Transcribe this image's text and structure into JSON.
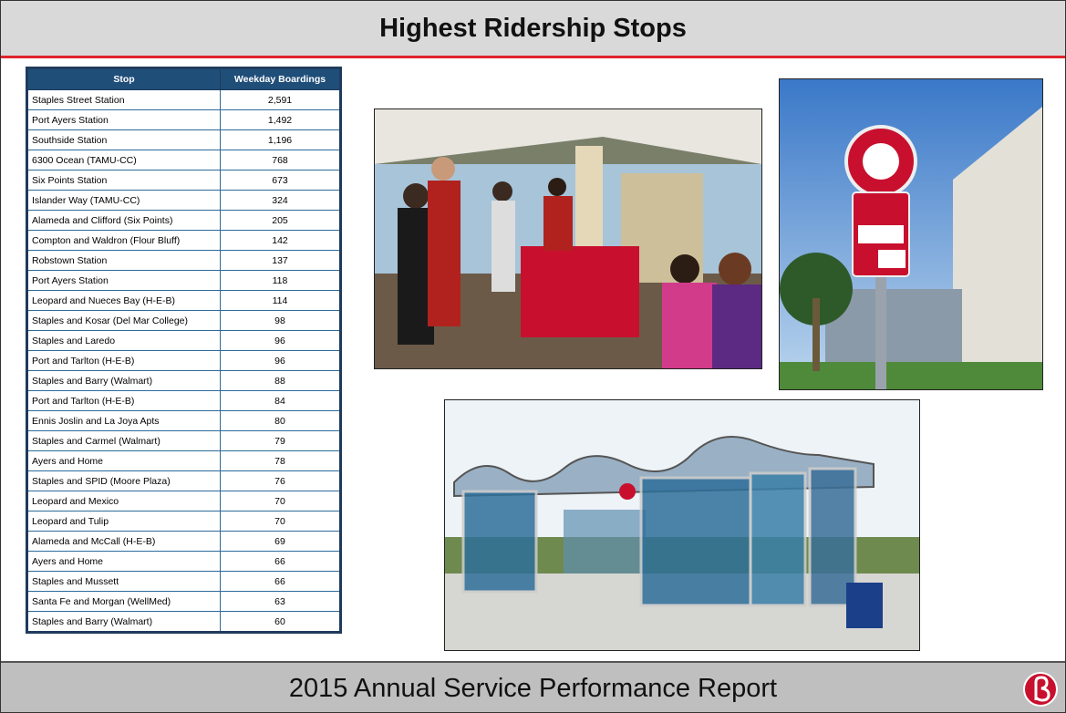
{
  "header": {
    "title": "Highest Ridership Stops"
  },
  "table": {
    "columns": [
      "Stop",
      "Weekday Boardings"
    ],
    "rows": [
      [
        "Staples Street Station",
        "2,591"
      ],
      [
        "Port Ayers Station",
        "1,492"
      ],
      [
        "Southside Station",
        "1,196"
      ],
      [
        "6300 Ocean (TAMU-CC)",
        "768"
      ],
      [
        "Six Points Station",
        "673"
      ],
      [
        "Islander Way (TAMU-CC)",
        "324"
      ],
      [
        "Alameda and Clifford (Six Points)",
        "205"
      ],
      [
        "Compton and Waldron (Flour Bluff)",
        "142"
      ],
      [
        "Robstown Station",
        "137"
      ],
      [
        "Port Ayers Station",
        "118"
      ],
      [
        "Leopard and Nueces Bay (H-E-B)",
        "114"
      ],
      [
        "Staples and Kosar (Del Mar College)",
        "98"
      ],
      [
        "Staples and Laredo",
        "96"
      ],
      [
        "Port and Tarlton (H-E-B)",
        "96"
      ],
      [
        "Staples and Barry (Walmart)",
        "88"
      ],
      [
        "Port and Tarlton (H-E-B)",
        "84"
      ],
      [
        "Ennis Joslin and La Joya Apts",
        "80"
      ],
      [
        "Staples and Carmel (Walmart)",
        "79"
      ],
      [
        "Ayers and Home",
        "78"
      ],
      [
        "Staples and SPID (Moore Plaza)",
        "76"
      ],
      [
        "Leopard and Mexico",
        "70"
      ],
      [
        "Leopard and Tulip",
        "70"
      ],
      [
        "Alameda and McCall (H-E-B)",
        "69"
      ],
      [
        "Ayers and Home",
        "66"
      ],
      [
        "Staples and Mussett",
        "66"
      ],
      [
        "Santa Fe and Morgan (WellMed)",
        "63"
      ],
      [
        "Staples and Barry (Walmart)",
        "60"
      ]
    ]
  },
  "footer": {
    "title": "2015 Annual Service Performance Report"
  }
}
